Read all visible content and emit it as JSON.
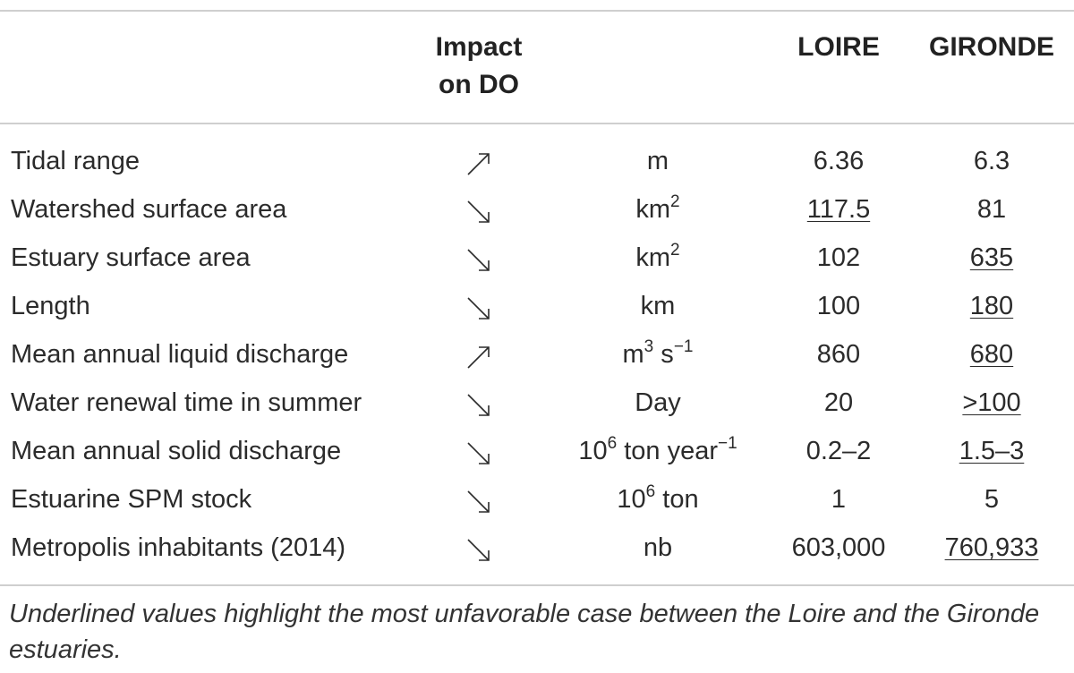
{
  "header": {
    "impact_line1": "Impact",
    "impact_line2": "on DO",
    "loire": "LOIRE",
    "gironde": "GIRONDE"
  },
  "rows": [
    {
      "parameter": "Tidal range",
      "impact": "increase",
      "unit": "m",
      "unit_sup": "",
      "unit_after": "",
      "unit_sup2": "",
      "loire": "6.36",
      "loire_highlight": false,
      "gironde": "6.3",
      "gironde_highlight": false
    },
    {
      "parameter": "Watershed surface area",
      "impact": "decrease",
      "unit": "km",
      "unit_sup": "2",
      "unit_after": "",
      "unit_sup2": "",
      "loire": "117.5",
      "loire_highlight": true,
      "gironde": "81",
      "gironde_highlight": false
    },
    {
      "parameter": "Estuary surface area",
      "impact": "decrease",
      "unit": "km",
      "unit_sup": "2",
      "unit_after": "",
      "unit_sup2": "",
      "loire": "102",
      "loire_highlight": false,
      "gironde": "635",
      "gironde_highlight": true
    },
    {
      "parameter": "Length",
      "impact": "decrease",
      "unit": "km",
      "unit_sup": "",
      "unit_after": "",
      "unit_sup2": "",
      "loire": "100",
      "loire_highlight": false,
      "gironde": "180",
      "gironde_highlight": true
    },
    {
      "parameter": "Mean annual liquid discharge",
      "impact": "increase",
      "unit": "m",
      "unit_sup": "3",
      "unit_after": " s",
      "unit_sup2": "−1",
      "loire": "860",
      "loire_highlight": false,
      "gironde": "680",
      "gironde_highlight": true
    },
    {
      "parameter": "Water renewal time in summer",
      "impact": "decrease",
      "unit": "Day",
      "unit_sup": "",
      "unit_after": "",
      "unit_sup2": "",
      "loire": "20",
      "loire_highlight": false,
      "gironde": ">100",
      "gironde_highlight": true
    },
    {
      "parameter": "Mean annual solid discharge",
      "impact": "decrease",
      "unit": "10",
      "unit_sup": "6",
      "unit_after": " ton year",
      "unit_sup2": "−1",
      "loire": "0.2–2",
      "loire_highlight": false,
      "gironde": "1.5–3",
      "gironde_highlight": true
    },
    {
      "parameter": "Estuarine SPM stock",
      "impact": "decrease",
      "unit": "10",
      "unit_sup": "6",
      "unit_after": " ton",
      "unit_sup2": "",
      "loire": "1",
      "loire_highlight": false,
      "gironde": "5",
      "gironde_highlight": false
    },
    {
      "parameter": "Metropolis inhabitants (2014)",
      "impact": "decrease",
      "unit": "nb",
      "unit_sup": "",
      "unit_after": "",
      "unit_sup2": "",
      "loire": "603,000",
      "loire_highlight": false,
      "gironde": "760,933",
      "gironde_highlight": true
    }
  ],
  "footnote": "Underlined values highlight the most unfavorable case between the Loire and the Gironde estuaries.",
  "icons": {
    "increase": "arrow-up-right-icon",
    "decrease": "arrow-down-right-icon"
  },
  "colors": {
    "text": "#2b2b2b",
    "rule": "#cfcfcf"
  }
}
